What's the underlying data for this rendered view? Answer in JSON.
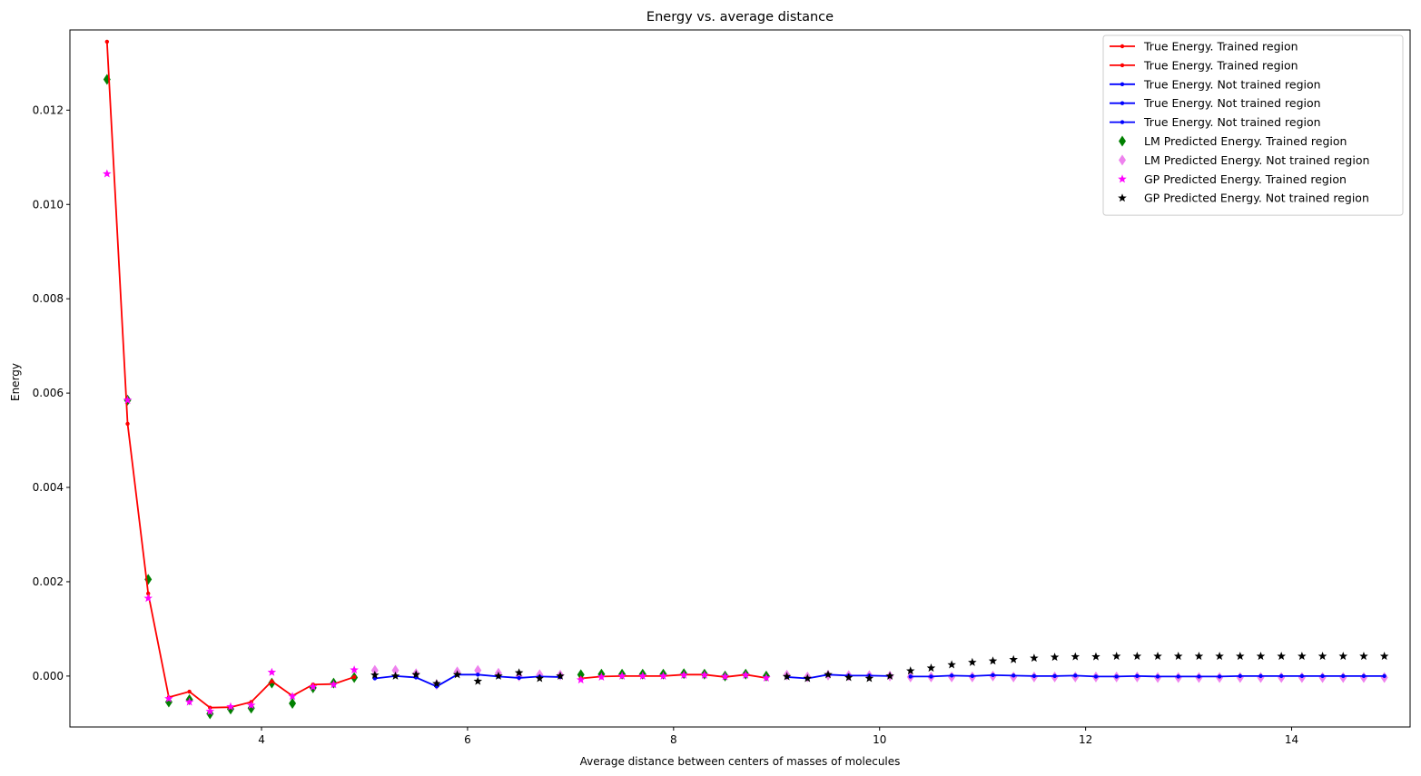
{
  "chart_data": {
    "type": "line",
    "title": "Energy vs. average distance",
    "xlabel": "Average distance between centers of masses of molecules",
    "ylabel": "Energy",
    "xlim": [
      2.14,
      15.15
    ],
    "ylim": [
      -0.00108,
      0.0137
    ],
    "xticks": [
      4,
      6,
      8,
      10,
      12,
      14
    ],
    "xtick_labels": [
      "4",
      "6",
      "8",
      "10",
      "12",
      "14"
    ],
    "yticks": [
      0.0,
      0.002,
      0.004,
      0.006,
      0.008,
      0.01,
      0.012
    ],
    "ytick_labels": [
      "0.000",
      "0.002",
      "0.004",
      "0.006",
      "0.008",
      "0.010",
      "0.012"
    ],
    "grid": false,
    "legend_position": "top-right",
    "colors": {
      "true_trained": "#ff0000",
      "true_not_trained": "#0000ff",
      "lm_trained": "#008000",
      "lm_not_trained": "#ee82ee",
      "gp_trained": "#ff00ff",
      "gp_not_trained": "#000000"
    },
    "legend": [
      {
        "label": "True Energy. Trained region",
        "kind": "line",
        "color": "#ff0000"
      },
      {
        "label": "True Energy. Trained region",
        "kind": "line",
        "color": "#ff0000"
      },
      {
        "label": "True Energy. Not trained region",
        "kind": "line",
        "color": "#0000ff"
      },
      {
        "label": "True Energy. Not trained region",
        "kind": "line",
        "color": "#0000ff"
      },
      {
        "label": "True Energy. Not trained region",
        "kind": "line",
        "color": "#0000ff"
      },
      {
        "label": "LM Predicted Energy. Trained region",
        "kind": "diamond",
        "color": "#008000"
      },
      {
        "label": "LM Predicted Energy. Not trained region",
        "kind": "diamond",
        "color": "#ee82ee"
      },
      {
        "label": "GP Predicted Energy. Trained region",
        "kind": "star",
        "color": "#ff00ff"
      },
      {
        "label": "GP Predicted Energy. Not trained region",
        "kind": "star",
        "color": "#000000"
      }
    ],
    "series": [
      {
        "name": "True Energy. Trained region",
        "kind": "line",
        "color": "#ff0000",
        "x": [
          2.5,
          2.7,
          2.9,
          3.1,
          3.3,
          3.5,
          3.7,
          3.9,
          4.1,
          4.3,
          4.5,
          4.7,
          4.9
        ],
        "y": [
          0.01345,
          0.00535,
          0.00175,
          -0.00045,
          -0.00033,
          -0.00067,
          -0.00066,
          -0.00055,
          -0.00011,
          -0.00042,
          -0.00018,
          -0.00017,
          -2e-05
        ]
      },
      {
        "name": "True Energy. Not trained region",
        "kind": "line",
        "color": "#0000ff",
        "x": [
          5.1,
          5.3,
          5.5,
          5.7,
          5.9,
          6.1,
          6.3,
          6.5,
          6.7,
          6.9
        ],
        "y": [
          -5e-05,
          0.0,
          -3e-05,
          -0.00022,
          3e-05,
          3e-05,
          -1e-05,
          -4e-05,
          -1e-05,
          -2e-05
        ]
      },
      {
        "name": "True Energy. Trained region",
        "kind": "line",
        "color": "#ff0000",
        "x": [
          7.1,
          7.3,
          7.5,
          7.7,
          7.9,
          8.1,
          8.3,
          8.5,
          8.7,
          8.9
        ],
        "y": [
          -5e-05,
          -1e-05,
          0.0,
          0.0,
          0.0,
          3e-05,
          3e-05,
          -2e-05,
          3e-05,
          -4e-05
        ]
      },
      {
        "name": "True Energy. Not trained region",
        "kind": "line",
        "color": "#0000ff",
        "x": [
          9.1,
          9.3,
          9.5,
          9.7,
          9.9,
          10.1
        ],
        "y": [
          -2e-05,
          -5e-05,
          3e-05,
          1e-05,
          1e-05,
          0.0
        ]
      },
      {
        "name": "True Energy. Not trained region",
        "kind": "line",
        "color": "#0000ff",
        "x": [
          10.3,
          10.5,
          10.7,
          10.9,
          11.1,
          11.3,
          11.5,
          11.7,
          11.9,
          12.1,
          12.3,
          12.5,
          12.7,
          12.9,
          13.1,
          13.3,
          13.5,
          13.7,
          13.9,
          14.1,
          14.3,
          14.5,
          14.7,
          14.9
        ],
        "y": [
          -1e-05,
          -1e-05,
          1e-05,
          0.0,
          2e-05,
          1e-05,
          0.0,
          0.0,
          1e-05,
          -1e-05,
          -1e-05,
          0.0,
          -1e-05,
          -1e-05,
          -1e-05,
          -1e-05,
          0.0,
          0.0,
          0.0,
          0.0,
          0.0,
          0.0,
          0.0,
          0.0
        ]
      },
      {
        "name": "LM Predicted Energy. Trained region",
        "kind": "diamond",
        "color": "#008000",
        "x": [
          2.5,
          2.7,
          2.9,
          3.1,
          3.3,
          3.5,
          3.7,
          3.9,
          4.1,
          4.3,
          4.5,
          4.7,
          4.9,
          7.1,
          7.3,
          7.5,
          7.7,
          7.9,
          8.1,
          8.3,
          8.5,
          8.7,
          8.9
        ],
        "y": [
          0.01265,
          0.00585,
          0.00205,
          -0.00055,
          -0.0005,
          -0.0008,
          -0.0007,
          -0.00068,
          -0.00015,
          -0.00058,
          -0.00025,
          -0.00015,
          -3e-05,
          3e-05,
          4e-05,
          4e-05,
          4e-05,
          4e-05,
          5e-05,
          4e-05,
          0.0,
          4e-05,
          0.0
        ]
      },
      {
        "name": "LM Predicted Energy. Not trained region",
        "kind": "diamond",
        "color": "#ee82ee",
        "x": [
          5.1,
          5.3,
          5.5,
          5.7,
          5.9,
          6.1,
          6.3,
          6.5,
          6.7,
          6.9,
          9.1,
          9.3,
          9.5,
          9.7,
          9.9,
          10.1,
          10.3,
          10.5,
          10.7,
          10.9,
          11.1,
          11.3,
          11.5,
          11.7,
          11.9,
          12.1,
          12.3,
          12.5,
          12.7,
          12.9,
          13.1,
          13.3,
          13.5,
          13.7,
          13.9,
          14.1,
          14.3,
          14.5,
          14.7,
          14.9
        ],
        "y": [
          0.00012,
          0.00012,
          5e-05,
          -0.00018,
          9e-05,
          0.00012,
          6e-05,
          0.0,
          3e-05,
          2e-05,
          2e-05,
          -2e-05,
          2e-05,
          1e-05,
          1e-05,
          0.0,
          -2e-05,
          -2e-05,
          -2e-05,
          -2e-05,
          0.0,
          -2e-05,
          -2e-05,
          -2e-05,
          -2e-05,
          -2e-05,
          -2e-05,
          -2e-05,
          -3e-05,
          -3e-05,
          -3e-05,
          -3e-05,
          -3e-05,
          -3e-05,
          -3e-05,
          -3e-05,
          -3e-05,
          -3e-05,
          -3e-05,
          -3e-05
        ]
      },
      {
        "name": "GP Predicted Energy. Trained region",
        "kind": "star",
        "color": "#ff00ff",
        "x": [
          2.5,
          2.7,
          2.9,
          3.1,
          3.3,
          3.5,
          3.7,
          3.9,
          4.1,
          4.3,
          4.5,
          4.7,
          4.9,
          7.1,
          7.3,
          7.5,
          7.7,
          7.9,
          8.1,
          8.3,
          8.5,
          8.7,
          8.9
        ],
        "y": [
          0.01065,
          0.00585,
          0.00165,
          -0.00048,
          -0.00055,
          -0.00075,
          -0.00065,
          -0.00062,
          8e-05,
          -0.00043,
          -0.00023,
          -0.00018,
          0.00013,
          -8e-05,
          -2e-05,
          0.0,
          0.0,
          0.0,
          2e-05,
          2e-05,
          -1e-05,
          2e-05,
          -4e-05
        ]
      },
      {
        "name": "GP Predicted Energy. Not trained region",
        "kind": "star",
        "color": "#000000",
        "x": [
          5.1,
          5.3,
          5.5,
          5.7,
          5.9,
          6.1,
          6.3,
          6.5,
          6.7,
          6.9,
          9.1,
          9.3,
          9.5,
          9.7,
          9.9,
          10.1,
          10.3,
          10.5,
          10.7,
          10.9,
          11.1,
          11.3,
          11.5,
          11.7,
          11.9,
          12.1,
          12.3,
          12.5,
          12.7,
          12.9,
          13.1,
          13.3,
          13.5,
          13.7,
          13.9,
          14.1,
          14.3,
          14.5,
          14.7,
          14.9
        ],
        "y": [
          2e-05,
          0.0,
          3e-05,
          -0.00016,
          3e-05,
          -0.00011,
          0.0,
          7e-05,
          -5e-05,
          0.0,
          -1e-05,
          -5e-05,
          3e-05,
          -3e-05,
          -5e-05,
          0.0,
          0.00011,
          0.00017,
          0.00024,
          0.00029,
          0.00032,
          0.00035,
          0.00038,
          0.0004,
          0.00041,
          0.00041,
          0.00042,
          0.00042,
          0.00042,
          0.00042,
          0.00042,
          0.00042,
          0.00042,
          0.00042,
          0.00042,
          0.00042,
          0.00042,
          0.00042,
          0.00042,
          0.00042
        ]
      }
    ]
  }
}
